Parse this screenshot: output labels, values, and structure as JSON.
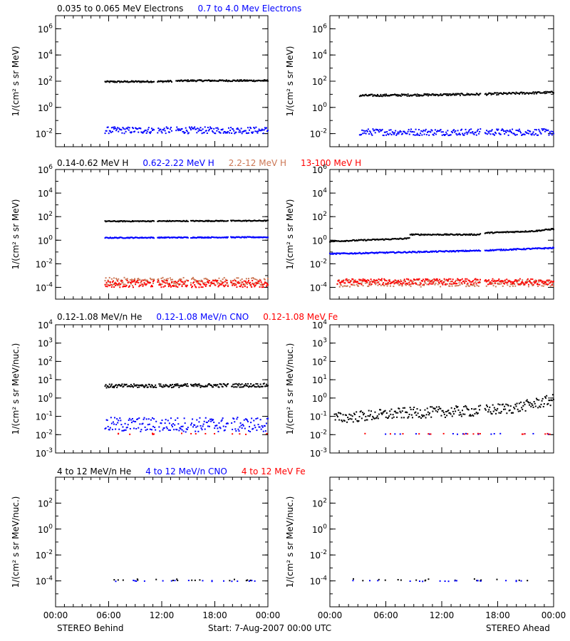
{
  "colors": {
    "black": "#000000",
    "blue": "#0000ff",
    "salmon": "#cc7755",
    "red": "#ff0000"
  },
  "row_headers": [
    [
      {
        "text": "0.035 to 0.065 MeV Electrons",
        "color": "#000000"
      },
      {
        "text": "0.7 to 4.0 Mev Electrons",
        "color": "#0000ff"
      }
    ],
    [
      {
        "text": "0.14-0.62 MeV H",
        "color": "#000000"
      },
      {
        "text": "0.62-2.22 MeV H",
        "color": "#0000ff"
      },
      {
        "text": "2.2-12 MeV H",
        "color": "#cc7755"
      },
      {
        "text": "13-100 MeV H",
        "color": "#ff0000"
      }
    ],
    [
      {
        "text": "0.12-1.08 MeV/n He",
        "color": "#000000"
      },
      {
        "text": "0.12-1.08 MeV/n CNO",
        "color": "#0000ff"
      },
      {
        "text": "0.12-1.08 MeV Fe",
        "color": "#ff0000"
      }
    ],
    [
      {
        "text": "4 to 12 MeV/n He",
        "color": "#000000"
      },
      {
        "text": "4 to 12 MeV/n CNO",
        "color": "#0000ff"
      },
      {
        "text": "4 to 12 MeV Fe",
        "color": "#ff0000"
      }
    ]
  ],
  "ylabels": {
    "electrons_protons": "1/(cm² s sr MeV)",
    "heavy_ions": "1/(cm² s sr MeV/nuc.)"
  },
  "x_tick_labels": [
    "00:00",
    "06:00",
    "12:00",
    "18:00",
    "00:00"
  ],
  "footer": {
    "left": "STEREO Behind",
    "center": "Start:  7-Aug-2007 00:00 UTC",
    "right": "STEREO Ahead"
  },
  "chart_data": [
    {
      "type": "scatter",
      "spacecraft": "STEREO Behind",
      "ylabel": "1/(cm² s sr MeV)",
      "yscale": "log",
      "ylim": [
        0.001,
        10000000.0
      ],
      "y_ticks": [
        {
          "v": 1000000.0,
          "label": "10^6"
        },
        {
          "v": 10000.0,
          "label": "10^4"
        },
        {
          "v": 100.0,
          "label": "10^2"
        },
        {
          "v": 1.0,
          "label": "10^0"
        },
        {
          "v": 0.01,
          "label": "10^-2"
        }
      ],
      "xlim_hours": [
        0,
        24
      ],
      "gaps_hours": [
        [
          11.2,
          11.5
        ],
        [
          13.2,
          13.6
        ]
      ],
      "series": [
        {
          "name": "0.035 to 0.065 MeV Electrons",
          "color": "#000000",
          "x_range_hours": [
            5.6,
            24
          ],
          "base": [
            [
              5.6,
              90
            ],
            [
              12,
              95
            ],
            [
              15,
              110
            ],
            [
              24,
              110
            ]
          ],
          "scatter": 0.06
        },
        {
          "name": "0.7 to 4.0 Mev Electrons",
          "color": "#0000ff",
          "x_range_hours": [
            5.6,
            24
          ],
          "base": [
            [
              5.6,
              0.018
            ],
            [
              24,
              0.018
            ]
          ],
          "scatter": 0.25
        }
      ]
    },
    {
      "type": "scatter",
      "spacecraft": "STEREO Ahead",
      "ylabel": "1/(cm² s sr MeV)",
      "yscale": "log",
      "ylim": [
        0.001,
        10000000.0
      ],
      "y_ticks": [
        {
          "v": 1000000.0,
          "label": "10^6"
        },
        {
          "v": 10000.0,
          "label": "10^4"
        },
        {
          "v": 100.0,
          "label": "10^2"
        },
        {
          "v": 1.0,
          "label": "10^0"
        },
        {
          "v": 0.01,
          "label": "10^-2"
        }
      ],
      "xlim_hours": [
        0,
        24
      ],
      "gaps_hours": [
        [
          16.2,
          16.6
        ]
      ],
      "series": [
        {
          "name": "0.035 to 0.065 MeV Electrons",
          "color": "#000000",
          "x_range_hours": [
            3.2,
            24
          ],
          "base": [
            [
              3.2,
              8
            ],
            [
              16,
              10
            ],
            [
              24,
              14
            ]
          ],
          "scatter": 0.08
        },
        {
          "name": "0.7 to 4.0 Mev Electrons",
          "color": "#0000ff",
          "x_range_hours": [
            3.2,
            24
          ],
          "base": [
            [
              3.2,
              0.013
            ],
            [
              24,
              0.013
            ]
          ],
          "scatter": 0.25
        }
      ]
    },
    {
      "type": "scatter",
      "spacecraft": "STEREO Behind",
      "ylabel": "1/(cm² s sr MeV)",
      "yscale": "log",
      "ylim": [
        1e-05,
        1000000.0
      ],
      "y_ticks": [
        {
          "v": 1000000.0,
          "label": "10^6"
        },
        {
          "v": 10000.0,
          "label": "10^4"
        },
        {
          "v": 100.0,
          "label": "10^2"
        },
        {
          "v": 1.0,
          "label": "10^0"
        },
        {
          "v": 0.01,
          "label": "10^-2"
        },
        {
          "v": 0.0001,
          "label": "10^-4"
        }
      ],
      "xlim_hours": [
        0,
        24
      ],
      "gaps_hours": [
        [
          11.2,
          11.5
        ],
        [
          15.0,
          15.3
        ],
        [
          19.5,
          19.8
        ]
      ],
      "series": [
        {
          "name": "0.14-0.62 MeV H",
          "color": "#000000",
          "x_range_hours": [
            5.6,
            24
          ],
          "base": [
            [
              5.6,
              40
            ],
            [
              24,
              45
            ]
          ],
          "scatter": 0.04
        },
        {
          "name": "0.62-2.22 MeV H",
          "color": "#0000ff",
          "x_range_hours": [
            5.6,
            24
          ],
          "base": [
            [
              5.6,
              1.6
            ],
            [
              24,
              1.8
            ]
          ],
          "scatter": 0.04
        },
        {
          "name": "2.2-12 MeV H",
          "color": "#cc7755",
          "x_range_hours": [
            5.6,
            24
          ],
          "base": [
            [
              5.6,
              0.0003
            ],
            [
              24,
              0.0003
            ]
          ],
          "scatter": 0.35
        },
        {
          "name": "13-100 MeV H",
          "color": "#ff0000",
          "x_range_hours": [
            5.6,
            24
          ],
          "base": [
            [
              5.6,
              0.0002
            ],
            [
              24,
              0.0002
            ]
          ],
          "scatter": 0.3
        }
      ]
    },
    {
      "type": "scatter",
      "spacecraft": "STEREO Ahead",
      "ylabel": "1/(cm² s sr MeV)",
      "yscale": "log",
      "ylim": [
        1e-05,
        1000000.0
      ],
      "y_ticks": [
        {
          "v": 1000000.0,
          "label": "10^6"
        },
        {
          "v": 10000.0,
          "label": "10^4"
        },
        {
          "v": 100.0,
          "label": "10^2"
        },
        {
          "v": 1.0,
          "label": "10^0"
        },
        {
          "v": 0.01,
          "label": "10^-2"
        },
        {
          "v": 0.0001,
          "label": "10^-4"
        }
      ],
      "xlim_hours": [
        0,
        24
      ],
      "gaps_hours": [
        [
          16.2,
          16.6
        ]
      ],
      "series": [
        {
          "name": "0.14-0.62 MeV H",
          "color": "#000000",
          "x_range_hours": [
            0,
            24
          ],
          "base": [
            [
              0,
              0.8
            ],
            [
              8.5,
              1.4
            ],
            [
              8.6,
              3
            ],
            [
              16,
              3
            ],
            [
              16.3,
              4
            ],
            [
              22,
              6
            ],
            [
              24,
              9
            ]
          ],
          "scatter": 0.05
        },
        {
          "name": "0.62-2.22 MeV H",
          "color": "#0000ff",
          "x_range_hours": [
            0,
            24
          ],
          "base": [
            [
              0,
              0.07
            ],
            [
              16,
              0.13
            ],
            [
              24,
              0.22
            ]
          ],
          "scatter": 0.05
        },
        {
          "name": "2.2-12 MeV H",
          "color": "#cc7755",
          "x_range_hours": [
            0.8,
            24
          ],
          "base": [
            [
              0.8,
              0.00022
            ],
            [
              24,
              0.00022
            ]
          ],
          "scatter": 0.3
        },
        {
          "name": "13-100 MeV H",
          "color": "#ff0000",
          "x_range_hours": [
            0.8,
            24
          ],
          "base": [
            [
              0.8,
              0.0003
            ],
            [
              24,
              0.0003
            ]
          ],
          "scatter": 0.25
        }
      ]
    },
    {
      "type": "scatter",
      "spacecraft": "STEREO Behind",
      "ylabel": "1/(cm² s sr MeV/nuc.)",
      "yscale": "log",
      "ylim": [
        0.001,
        10000.0
      ],
      "y_ticks": [
        {
          "v": 10000.0,
          "label": "10^4"
        },
        {
          "v": 1000.0,
          "label": "10^3"
        },
        {
          "v": 100.0,
          "label": "10^2"
        },
        {
          "v": 10.0,
          "label": "10^1"
        },
        {
          "v": 1.0,
          "label": "10^0"
        },
        {
          "v": 0.1,
          "label": "10^-1"
        },
        {
          "v": 0.01,
          "label": "10^-2"
        },
        {
          "v": 0.001,
          "label": "10^-3"
        }
      ],
      "xlim_hours": [
        0,
        24
      ],
      "gaps_hours": [
        [
          11.4,
          11.7
        ],
        [
          15.0,
          15.3
        ],
        [
          19.5,
          19.9
        ]
      ],
      "series": [
        {
          "name": "0.12-1.08 MeV/n He",
          "color": "#000000",
          "x_range_hours": [
            5.6,
            24
          ],
          "base": [
            [
              5.6,
              4.5
            ],
            [
              24,
              5
            ]
          ],
          "scatter": 0.1
        },
        {
          "name": "0.12-1.08 MeV/n CNO",
          "color": "#0000ff",
          "x_range_hours": [
            5.6,
            24
          ],
          "base": [
            [
              5.6,
              0.035
            ],
            [
              24,
              0.035
            ]
          ],
          "scatter": 0.4
        },
        {
          "name": "0.12-1.08 MeV Fe",
          "color": "#ff0000",
          "x_range_hours": [
            5.6,
            24
          ],
          "base": [
            [
              5.6,
              0.011
            ],
            [
              24,
              0.011
            ]
          ],
          "scatter": 0.03,
          "sparse": true
        }
      ]
    },
    {
      "type": "scatter",
      "spacecraft": "STEREO Ahead",
      "ylabel": "1/(cm² s sr MeV/nuc.)",
      "yscale": "log",
      "ylim": [
        0.001,
        10000.0
      ],
      "y_ticks": [
        {
          "v": 10000.0,
          "label": "10^4"
        },
        {
          "v": 1000.0,
          "label": "10^3"
        },
        {
          "v": 100.0,
          "label": "10^2"
        },
        {
          "v": 10.0,
          "label": "10^1"
        },
        {
          "v": 1.0,
          "label": "10^0"
        },
        {
          "v": 0.1,
          "label": "10^-1"
        },
        {
          "v": 0.01,
          "label": "10^-2"
        },
        {
          "v": 0.001,
          "label": "10^-3"
        }
      ],
      "xlim_hours": [
        0,
        24
      ],
      "gaps_hours": [
        [
          16.2,
          16.6
        ]
      ],
      "series": [
        {
          "name": "0.12-1.08 MeV/n He",
          "color": "#000000",
          "x_range_hours": [
            0.5,
            24
          ],
          "base": [
            [
              0.5,
              0.08
            ],
            [
              8,
              0.15
            ],
            [
              16,
              0.2
            ],
            [
              20,
              0.3
            ],
            [
              24,
              0.8
            ]
          ],
          "scatter": 0.3
        },
        {
          "name": "0.12-1.08 MeV/n CNO",
          "color": "#0000ff",
          "x_range_hours": [
            0.5,
            24
          ],
          "base": [
            [
              0.5,
              0.011
            ],
            [
              24,
              0.011
            ]
          ],
          "scatter": 0.02,
          "sparse": true
        },
        {
          "name": "0.12-1.08 MeV Fe",
          "color": "#ff0000",
          "x_range_hours": [
            0.5,
            24
          ],
          "base": [
            [
              0.5,
              0.011
            ],
            [
              24,
              0.011
            ]
          ],
          "scatter": 0.02,
          "sparse": true
        }
      ]
    },
    {
      "type": "scatter",
      "spacecraft": "STEREO Behind",
      "ylabel": "1/(cm² s sr MeV/nuc.)",
      "yscale": "log",
      "ylim": [
        1e-06,
        10000.0
      ],
      "y_ticks": [
        {
          "v": 100.0,
          "label": "10^2"
        },
        {
          "v": 1.0,
          "label": "10^0"
        },
        {
          "v": 0.01,
          "label": "10^-2"
        },
        {
          "v": 0.0001,
          "label": "10^-4"
        }
      ],
      "xlim_hours": [
        0,
        24
      ],
      "series": [
        {
          "name": "4 to 12 MeV/n He",
          "color": "#000000",
          "x_range_hours": [
            6,
            23
          ],
          "base": [
            [
              6,
              0.00012
            ],
            [
              23,
              0.00012
            ]
          ],
          "scatter": 0.06,
          "sparse": true
        },
        {
          "name": "4 to 12 MeV/n CNO",
          "color": "#0000ff",
          "x_range_hours": [
            6,
            23
          ],
          "base": [
            [
              6,
              0.0001
            ],
            [
              23,
              0.0001
            ]
          ],
          "scatter": 0.04,
          "sparse": true
        }
      ]
    },
    {
      "type": "scatter",
      "spacecraft": "STEREO Ahead",
      "ylabel": "1/(cm² s sr MeV/nuc.)",
      "yscale": "log",
      "ylim": [
        1e-06,
        10000.0
      ],
      "y_ticks": [
        {
          "v": 100.0,
          "label": "10^2"
        },
        {
          "v": 1.0,
          "label": "10^0"
        },
        {
          "v": 0.01,
          "label": "10^-2"
        },
        {
          "v": 0.0001,
          "label": "10^-4"
        }
      ],
      "xlim_hours": [
        0,
        24
      ],
      "series": [
        {
          "name": "4 to 12 MeV/n He",
          "color": "#000000",
          "x_range_hours": [
            2.5,
            23.5
          ],
          "base": [
            [
              2.5,
              0.00012
            ],
            [
              23.5,
              0.00012
            ]
          ],
          "scatter": 0.08,
          "sparse": true
        },
        {
          "name": "4 to 12 MeV/n CNO",
          "color": "#0000ff",
          "x_range_hours": [
            0,
            23.5
          ],
          "base": [
            [
              0,
              0.0001
            ],
            [
              23.5,
              0.0001
            ]
          ],
          "scatter": 0.04,
          "sparse": true
        }
      ]
    }
  ]
}
